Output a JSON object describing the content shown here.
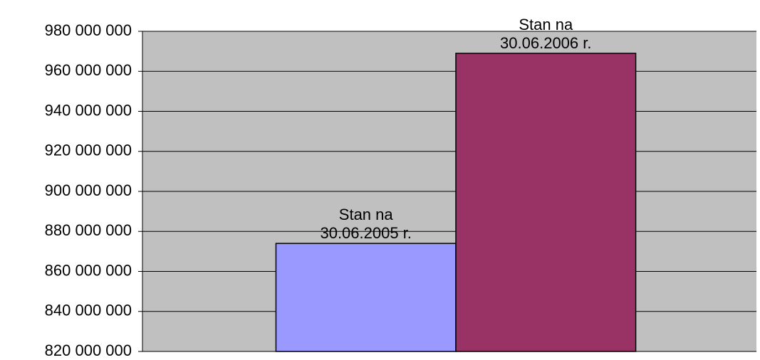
{
  "chart_data": {
    "type": "bar",
    "categories": [
      null
    ],
    "series": [
      {
        "name": "Stan na 30.06.2005 r.",
        "color": "#9999ff",
        "values": [
          874000000
        ]
      },
      {
        "name": "Stan na 30.06.2006 r.",
        "color": "#993366",
        "values": [
          969000000
        ]
      }
    ],
    "ylim": [
      820000000,
      980000000
    ],
    "yticks": [
      {
        "value": 820000000,
        "label": "820 000 000"
      },
      {
        "value": 840000000,
        "label": "840 000 000"
      },
      {
        "value": 860000000,
        "label": "860 000 000"
      },
      {
        "value": 880000000,
        "label": "880 000 000"
      },
      {
        "value": 900000000,
        "label": "900 000 000"
      },
      {
        "value": 920000000,
        "label": "920 000 000"
      },
      {
        "value": 940000000,
        "label": "940 000 000"
      },
      {
        "value": 960000000,
        "label": "960 000 000"
      },
      {
        "value": 980000000,
        "label": "980 000 000"
      }
    ],
    "grid": true,
    "plot_background": "#c0c0c0"
  }
}
